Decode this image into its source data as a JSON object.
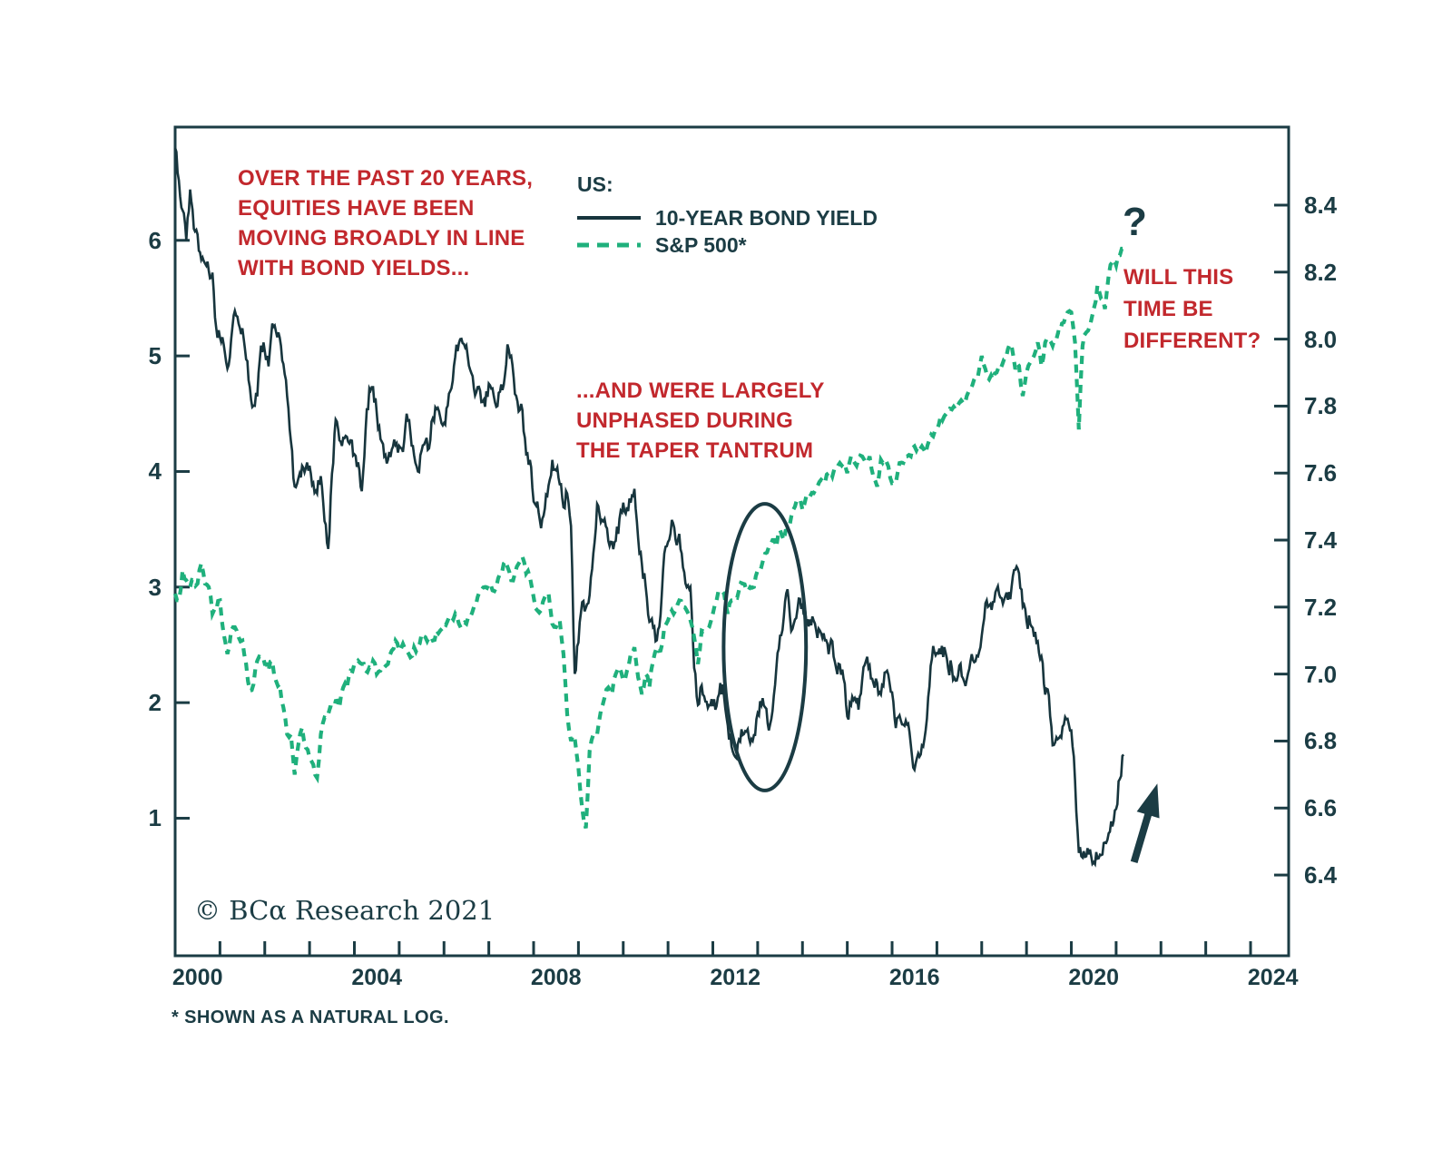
{
  "colors": {
    "ink": "#1b3c44",
    "bond_line": "#17353d",
    "sp500_line": "#1fb07c",
    "red_text": "#c2282d",
    "background": "#ffffff"
  },
  "legend": {
    "heading": "US:",
    "items": [
      {
        "label": "10-YEAR BOND YIELD",
        "line_style": "solid"
      },
      {
        "label": "S&P 500*",
        "line_style": "dashed"
      }
    ]
  },
  "annotations": {
    "note1_lines": [
      "OVER THE PAST 20 YEARS,",
      "EQUITIES HAVE BEEN",
      "MOVING BROADLY IN LINE",
      "WITH BOND YIELDS..."
    ],
    "note2_lines": [
      "...AND WERE LARGELY",
      "UNPHASED DURING",
      "THE TAPER TANTRUM"
    ],
    "note3_lines": [
      "WILL THIS",
      "TIME BE",
      "DIFFERENT?"
    ],
    "question_mark": "?"
  },
  "footer": {
    "copyright": "© BCα Research 2021",
    "footnote": "* SHOWN AS A NATURAL LOG."
  },
  "chart_data": {
    "type": "line",
    "x_axis": {
      "start_year": 2000.0,
      "end_year": 2024.85,
      "tick_interval_years": 1,
      "label_years": [
        2000,
        2004,
        2008,
        2012,
        2016,
        2020,
        2024
      ],
      "labels_centered_on_half_year": true
    },
    "left_axis": {
      "series": "10-YEAR BOND YIELD",
      "ticks": [
        1,
        2,
        3,
        4,
        5,
        6
      ],
      "top_value": 6.98,
      "bottom_value": -0.19
    },
    "right_axis": {
      "series": "S&P 500 (natural log)",
      "ticks": [
        6.4,
        6.6,
        6.8,
        7.0,
        7.2,
        7.4,
        7.6,
        7.8,
        8.0,
        8.2,
        8.4
      ],
      "top_value": 8.633,
      "bottom_value": 6.159
    },
    "series": [
      {
        "name": "10-YEAR BOND YIELD",
        "axis": "left",
        "line_style": "solid",
        "color_key": "bond_line",
        "x_start_year": 2000.0,
        "x_step_years": 0.083333,
        "values": [
          6.8,
          6.52,
          6.26,
          6.0,
          6.44,
          6.1,
          6.05,
          5.83,
          5.8,
          5.74,
          5.72,
          5.24,
          5.16,
          5.1,
          4.89,
          5.14,
          5.39,
          5.28,
          5.24,
          4.97,
          4.73,
          4.57,
          4.65,
          5.09,
          5.04,
          4.91,
          5.28,
          5.21,
          5.16,
          4.93,
          4.65,
          4.26,
          3.87,
          3.94,
          4.05,
          4.03,
          4.05,
          3.9,
          3.81,
          3.96,
          3.57,
          3.33,
          3.98,
          4.45,
          4.27,
          4.29,
          4.3,
          4.27,
          4.15,
          4.08,
          3.83,
          4.35,
          4.72,
          4.73,
          4.5,
          4.28,
          4.13,
          4.1,
          4.19,
          4.23,
          4.22,
          4.17,
          4.5,
          4.34,
          4.14,
          4.0,
          4.18,
          4.26,
          4.2,
          4.46,
          4.54,
          4.47,
          4.42,
          4.57,
          4.72,
          4.99,
          5.11,
          5.11,
          5.09,
          4.88,
          4.72,
          4.73,
          4.6,
          4.56,
          4.76,
          4.72,
          4.56,
          4.69,
          4.75,
          5.1,
          5.0,
          4.67,
          4.52,
          4.53,
          4.15,
          4.1,
          3.74,
          3.74,
          3.51,
          3.68,
          3.88,
          4.1,
          4.01,
          3.89,
          3.69,
          3.81,
          3.53,
          2.25,
          2.52,
          2.87,
          2.82,
          2.93,
          3.29,
          3.72,
          3.56,
          3.59,
          3.4,
          3.39,
          3.4,
          3.59,
          3.73,
          3.69,
          3.73,
          3.85,
          3.42,
          3.2,
          3.01,
          2.7,
          2.65,
          2.54,
          2.76,
          3.29,
          3.39,
          3.58,
          3.41,
          3.46,
          3.17,
          3.0,
          3.0,
          2.3,
          1.98,
          2.15,
          2.01,
          1.98,
          1.97,
          1.97,
          2.17,
          2.05,
          1.8,
          1.62,
          1.53,
          1.68,
          1.72,
          1.75,
          1.65,
          1.72,
          1.91,
          1.98,
          1.96,
          1.76,
          1.93,
          2.3,
          2.58,
          2.74,
          2.98,
          2.62,
          2.72,
          2.9,
          2.86,
          2.71,
          2.72,
          2.71,
          2.56,
          2.6,
          2.54,
          2.42,
          2.53,
          2.3,
          2.33,
          2.21,
          1.88,
          1.98,
          2.04,
          1.94,
          2.2,
          2.36,
          2.32,
          2.17,
          2.17,
          2.07,
          2.26,
          2.24,
          2.09,
          1.78,
          1.89,
          1.81,
          1.81,
          1.64,
          1.42,
          1.56,
          1.63,
          1.76,
          2.14,
          2.49,
          2.43,
          2.42,
          2.48,
          2.3,
          2.3,
          2.19,
          2.32,
          2.21,
          2.2,
          2.36,
          2.35,
          2.4,
          2.58,
          2.86,
          2.84,
          2.87,
          2.98,
          2.91,
          2.89,
          2.89,
          3.0,
          3.15,
          3.12,
          2.83,
          2.71,
          2.68,
          2.57,
          2.53,
          2.4,
          2.07,
          2.06,
          1.63,
          1.7,
          1.71,
          1.81,
          1.86,
          1.76,
          1.33,
          0.7,
          0.66,
          0.67,
          0.73,
          0.62,
          0.65,
          0.68,
          0.79,
          0.87,
          0.93,
          1.08,
          1.34,
          1.55
        ]
      },
      {
        "name": "S&P 500 (natural log)",
        "axis": "right",
        "line_style": "dashed",
        "color_key": "sp500_line",
        "x_start_year": 2000.0,
        "x_step_years": 0.083333,
        "values": [
          7.24,
          7.22,
          7.31,
          7.28,
          7.26,
          7.28,
          7.27,
          7.33,
          7.27,
          7.26,
          7.18,
          7.19,
          7.22,
          7.12,
          7.06,
          7.13,
          7.14,
          7.11,
          7.1,
          7.03,
          6.95,
          6.97,
          7.04,
          7.05,
          7.03,
          7.01,
          7.04,
          6.98,
          6.97,
          6.9,
          6.82,
          6.82,
          6.7,
          6.79,
          6.84,
          6.78,
          6.75,
          6.73,
          6.69,
          6.82,
          6.87,
          6.88,
          6.9,
          6.92,
          6.9,
          6.96,
          6.96,
          7.01,
          7.03,
          7.04,
          7.03,
          7.01,
          7.02,
          7.04,
          7.0,
          7.01,
          7.02,
          7.03,
          7.07,
          7.1,
          7.07,
          7.09,
          7.07,
          7.05,
          7.08,
          7.08,
          7.12,
          7.11,
          7.11,
          7.1,
          7.13,
          7.13,
          7.15,
          7.16,
          7.17,
          7.18,
          7.15,
          7.15,
          7.15,
          7.17,
          7.2,
          7.23,
          7.25,
          7.26,
          7.27,
          7.25,
          7.26,
          7.3,
          7.33,
          7.32,
          7.28,
          7.3,
          7.33,
          7.35,
          7.3,
          7.29,
          7.23,
          7.19,
          7.19,
          7.23,
          7.24,
          7.15,
          7.14,
          7.16,
          7.06,
          6.88,
          6.8,
          6.81,
          6.72,
          6.6,
          6.54,
          6.77,
          6.82,
          6.82,
          6.89,
          6.93,
          6.96,
          6.94,
          7.0,
          7.02,
          6.98,
          7.01,
          7.06,
          7.08,
          6.99,
          6.94,
          7.0,
          6.96,
          7.04,
          7.08,
          7.07,
          7.14,
          7.16,
          7.19,
          7.19,
          7.22,
          7.2,
          7.19,
          7.16,
          7.11,
          7.03,
          7.13,
          7.13,
          7.14,
          7.18,
          7.22,
          7.25,
          7.24,
          7.18,
          7.22,
          7.23,
          7.25,
          7.27,
          7.25,
          7.26,
          7.26,
          7.31,
          7.32,
          7.36,
          7.38,
          7.4,
          7.38,
          7.43,
          7.4,
          7.43,
          7.47,
          7.5,
          7.52,
          7.49,
          7.53,
          7.53,
          7.54,
          7.56,
          7.58,
          7.57,
          7.6,
          7.59,
          7.61,
          7.63,
          7.63,
          7.6,
          7.65,
          7.63,
          7.64,
          7.65,
          7.63,
          7.65,
          7.59,
          7.56,
          7.64,
          7.64,
          7.62,
          7.57,
          7.57,
          7.63,
          7.63,
          7.65,
          7.65,
          7.68,
          7.68,
          7.68,
          7.66,
          7.7,
          7.71,
          7.73,
          7.77,
          7.77,
          7.78,
          7.79,
          7.79,
          7.81,
          7.81,
          7.83,
          7.85,
          7.88,
          7.89,
          7.95,
          7.91,
          7.88,
          7.88,
          7.9,
          7.91,
          7.94,
          7.97,
          7.98,
          7.91,
          7.92,
          7.83,
          7.9,
          7.93,
          7.95,
          7.99,
          7.92,
          7.99,
          8.0,
          7.98,
          8.0,
          8.02,
          8.05,
          8.08,
          8.08,
          7.99,
          7.73,
          7.98,
          8.02,
          8.04,
          8.09,
          8.16,
          8.12,
          8.09,
          8.19,
          8.23,
          8.22,
          8.25,
          8.27
        ]
      }
    ],
    "graphic_annotations": {
      "ellipse": {
        "center_year": 2013.16,
        "center_value_left_axis": 2.48,
        "radius_years": 0.92,
        "radius_value_left_axis": 1.24
      },
      "arrow": {
        "from_year": 2021.4,
        "from_value_left_axis": 0.62,
        "to_year": 2021.92,
        "to_value_left_axis": 1.3
      }
    }
  }
}
